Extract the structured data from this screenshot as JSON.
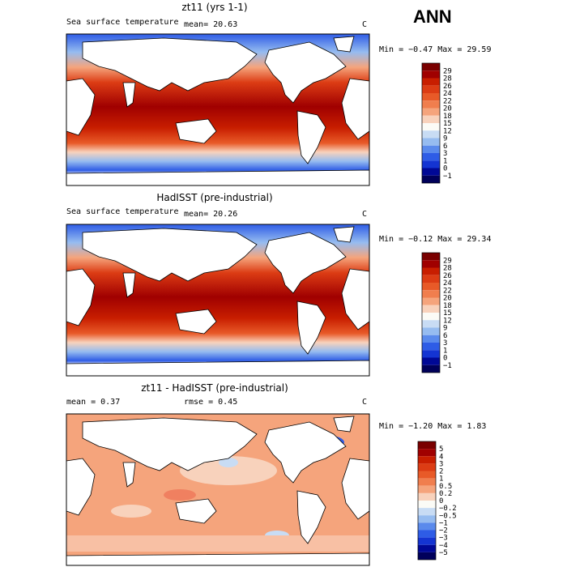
{
  "season": "ANN",
  "units": "C",
  "panels": [
    {
      "title": "zt11 (yrs 1-1)",
      "variable": "Sea surface temperature",
      "stats": "mean=  20.63",
      "minmax": "Min =  −0.47 Max =  29.59",
      "colorbar_labels": [
        "29",
        "28",
        "26",
        "24",
        "22",
        "20",
        "18",
        "15",
        "12",
        "9",
        "6",
        "3",
        "1",
        "0",
        "−1"
      ]
    },
    {
      "title": "HadISST (pre-industrial)",
      "variable": "Sea surface temperature",
      "stats": "mean=  20.26",
      "minmax": "Min =  −0.12 Max =  29.34",
      "colorbar_labels": [
        "29",
        "28",
        "26",
        "24",
        "22",
        "20",
        "18",
        "15",
        "12",
        "9",
        "6",
        "3",
        "1",
        "0",
        "−1"
      ]
    },
    {
      "title": "zt11 - HadISST (pre-industrial)",
      "variable": "",
      "stats_mean": "mean =   0.37",
      "stats_rmse": "rmse =   0.45",
      "minmax": "Min =  −1.20 Max =   1.83",
      "colorbar_labels": [
        "5",
        "4",
        "3",
        "2",
        "1",
        "0.5",
        "0.2",
        "0",
        "−0.2",
        "−0.5",
        "−1",
        "−2",
        "−3",
        "−4",
        "−5"
      ]
    }
  ],
  "colors": {
    "sst_scale": [
      "#7a0000",
      "#a00000",
      "#c81e00",
      "#dc3c14",
      "#e85a28",
      "#f07e4e",
      "#f5a47c",
      "#f8d2bc",
      "#fbfbf6",
      "#c8dcf4",
      "#96bcf0",
      "#5a8aec",
      "#2e5ce6",
      "#1434d2",
      "#000896",
      "#00005a"
    ],
    "diff_scale": [
      "#7a0000",
      "#a00000",
      "#c81e00",
      "#dc3c14",
      "#e85a28",
      "#f07e4e",
      "#f5a47c",
      "#f8d2bc",
      "#fbfbf6",
      "#c8dcf4",
      "#96bcf0",
      "#5a8aec",
      "#2e5ce6",
      "#1434d2",
      "#000896",
      "#00005a"
    ],
    "land": "#ffffff",
    "coast": "#000000"
  }
}
